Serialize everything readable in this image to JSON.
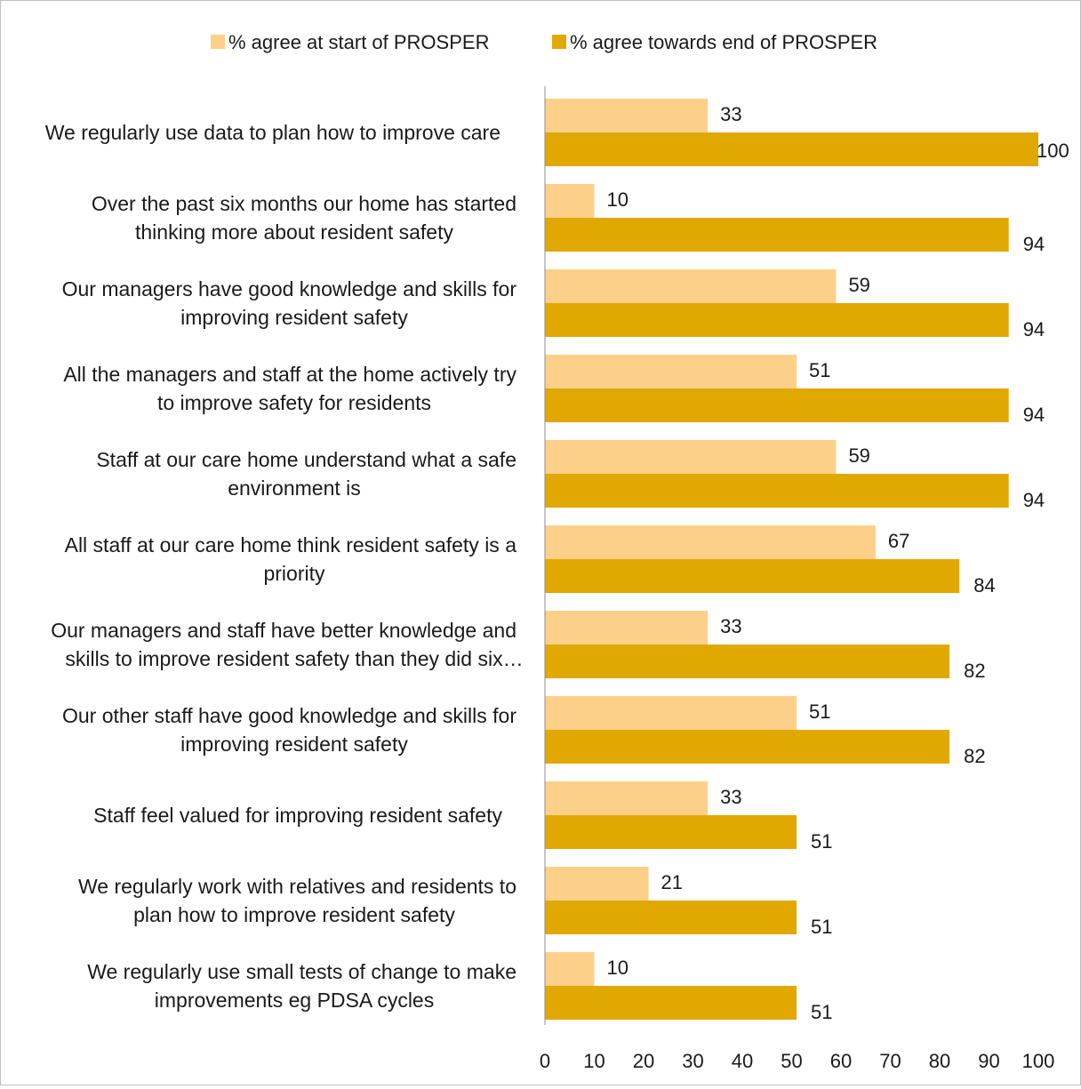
{
  "chart_data": {
    "type": "bar",
    "orientation": "horizontal",
    "title": "",
    "xlabel": "",
    "ylabel": "",
    "xlim": [
      0,
      100
    ],
    "x_ticks": [
      0,
      10,
      20,
      30,
      40,
      50,
      60,
      70,
      80,
      90,
      100
    ],
    "grid": false,
    "legend_position": "top",
    "categories": [
      [
        "We regularly use data to plan how to improve care"
      ],
      [
        "Over the past six months our home has started",
        "thinking more about resident safety"
      ],
      [
        "Our managers have good knowledge and skills for",
        "improving resident safety"
      ],
      [
        "All the managers and staff at the home actively try",
        "to improve safety for residents"
      ],
      [
        "Staff at our care home understand what a safe",
        "environment is"
      ],
      [
        "All staff at our care home think resident safety is a",
        "priority"
      ],
      [
        "Our managers and staff have better knowledge and",
        "skills to improve resident safety than they did six…"
      ],
      [
        "Our other staff have good knowledge and skills for",
        "improving resident safety"
      ],
      [
        "Staff feel valued for improving resident safety"
      ],
      [
        "We regularly work with relatives and residents to",
        "plan how to improve resident safety"
      ],
      [
        "We regularly use small tests of change to make",
        "improvements eg PDSA cycles"
      ]
    ],
    "series": [
      {
        "name": "% agree at start of PROSPER",
        "color": "#fdd08a",
        "values": [
          33,
          10,
          59,
          51,
          59,
          67,
          33,
          51,
          33,
          21,
          10
        ]
      },
      {
        "name": "% agree towards end of PROSPER",
        "color": "#e0a800",
        "values": [
          100,
          94,
          94,
          94,
          94,
          84,
          82,
          82,
          51,
          51,
          51
        ]
      }
    ]
  }
}
